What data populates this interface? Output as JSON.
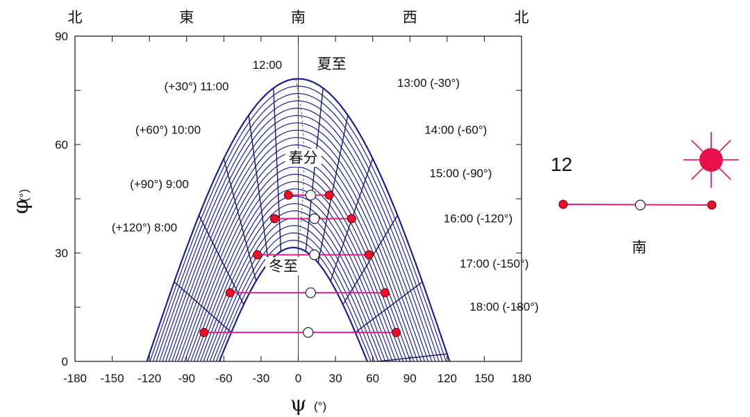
{
  "chart_data": {
    "type": "line",
    "title": "",
    "xlabel": "ψ",
    "xlabel_unit": "(°)",
    "ylabel": "φ",
    "ylabel_unit": "(°)",
    "xlim": [
      -180,
      180
    ],
    "ylim": [
      0,
      90
    ],
    "x_ticks": [
      "-180",
      "-150",
      "-120",
      "-90",
      "-60",
      "-30",
      "0",
      "30",
      "60",
      "90",
      "120",
      "150",
      "180"
    ],
    "y_ticks": [
      "0",
      "30",
      "60",
      "90"
    ],
    "compass_top": [
      {
        "x": -180,
        "label": "北"
      },
      {
        "x": -90,
        "label": "東"
      },
      {
        "x": 0,
        "label": "南"
      },
      {
        "x": 90,
        "label": "西"
      },
      {
        "x": 180,
        "label": "北"
      }
    ],
    "grid": false,
    "center_line_x": 0,
    "sun_path_family": {
      "count": 24,
      "summer_solstice_peak": 78.2,
      "winter_solstice_peak": 31.5,
      "summer_half_width": 124,
      "winter_half_width": 62,
      "color": "#1a1f8c"
    },
    "hour_labels": [
      {
        "text": "12:00",
        "x": -25,
        "y": 81
      },
      {
        "text": "(+30°) 11:00",
        "x": -82,
        "y": 75
      },
      {
        "text": "(+60°) 10:00",
        "x": -105,
        "y": 63
      },
      {
        "text": "(+90°) 9:00",
        "x": -112,
        "y": 48
      },
      {
        "text": "(+120°) 8:00",
        "x": -124,
        "y": 36
      },
      {
        "text": "13:00 (-30°)",
        "x": 105,
        "y": 76
      },
      {
        "text": "14:00 (-60°)",
        "x": 127,
        "y": 63
      },
      {
        "text": "15:00 (-90°)",
        "x": 131,
        "y": 51
      },
      {
        "text": "16:00 (-120°)",
        "x": 145,
        "y": 38.5
      },
      {
        "text": "17:00 (-150°)",
        "x": 158,
        "y": 26
      },
      {
        "text": "18:00 (-180°)",
        "x": 166,
        "y": 14
      }
    ],
    "season_labels": [
      {
        "text": "夏至",
        "x": 27,
        "y": 81
      },
      {
        "text": "春分",
        "x": 4,
        "y": 55
      },
      {
        "text": "冬至",
        "x": -12,
        "y": 25
      }
    ],
    "markers": [
      {
        "y": 46,
        "left": -8,
        "center": 10,
        "right": 25
      },
      {
        "y": 39.5,
        "left": -19,
        "center": 13,
        "right": 43
      },
      {
        "y": 29.5,
        "left": -33,
        "center": 13,
        "right": 57
      },
      {
        "y": 19,
        "left": -55,
        "center": 10,
        "right": 70
      },
      {
        "y": 8,
        "left": -76,
        "center": 8,
        "right": 79
      }
    ],
    "marker_colors": {
      "end": "#e8102a",
      "center": "#ffffff",
      "line": "#d81b8c"
    }
  },
  "side_panel": {
    "hour": "12",
    "direction": "南",
    "sun_color": "#e8104a",
    "ray_color": "#e0207a"
  }
}
